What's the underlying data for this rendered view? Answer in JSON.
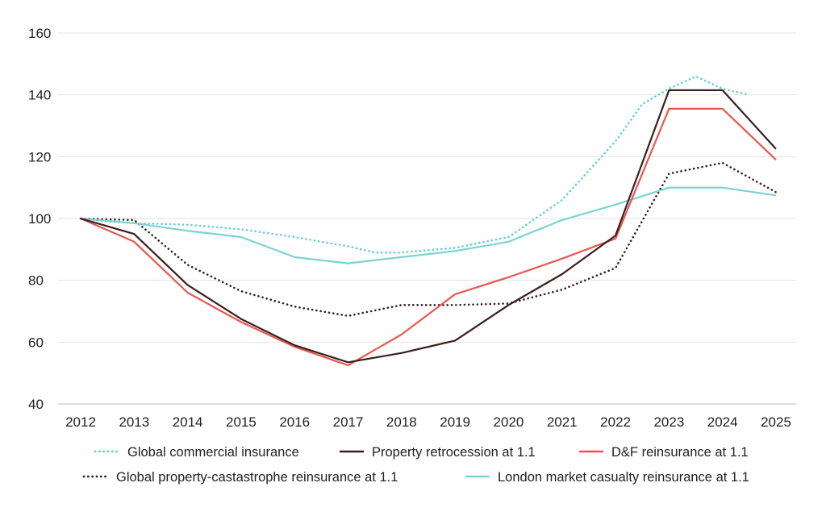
{
  "chart_data": {
    "type": "line",
    "title": "",
    "xlabel": "",
    "ylabel": "",
    "ylim": [
      40,
      160
    ],
    "yticks": [
      40,
      60,
      80,
      100,
      120,
      140,
      160
    ],
    "xlim": [
      2012,
      2025
    ],
    "xticks": [
      2012,
      2013,
      2014,
      2015,
      2016,
      2017,
      2018,
      2019,
      2020,
      2021,
      2022,
      2023,
      2024,
      2025
    ],
    "grid": "horizontal",
    "legend_position": "bottom",
    "series": [
      {
        "name": "Global commercial insurance",
        "color": "#5ecfd4",
        "style": "dotted",
        "points": [
          [
            2012,
            100
          ],
          [
            2012.5,
            99
          ],
          [
            2013,
            98.5
          ],
          [
            2014,
            98
          ],
          [
            2015,
            96.5
          ],
          [
            2016,
            94
          ],
          [
            2017,
            91
          ],
          [
            2017.5,
            89
          ],
          [
            2018,
            89
          ],
          [
            2019,
            90.5
          ],
          [
            2020,
            94
          ],
          [
            2021,
            106
          ],
          [
            2022,
            125
          ],
          [
            2022.5,
            137
          ],
          [
            2023,
            142
          ],
          [
            2023.5,
            146
          ],
          [
            2024,
            142
          ],
          [
            2024.5,
            140
          ]
        ]
      },
      {
        "name": "Property retrocession at 1.1",
        "color": "#3b1f1f",
        "style": "solid",
        "points": [
          [
            2012,
            100
          ],
          [
            2013,
            95
          ],
          [
            2014,
            78.5
          ],
          [
            2015,
            67.5
          ],
          [
            2016,
            59
          ],
          [
            2017,
            53.5
          ],
          [
            2018,
            56.5
          ],
          [
            2019,
            60.5
          ],
          [
            2020,
            72
          ],
          [
            2021,
            82
          ],
          [
            2022,
            94.5
          ],
          [
            2023,
            141.5
          ],
          [
            2024,
            141.5
          ],
          [
            2025,
            122.5
          ]
        ]
      },
      {
        "name": "D&F reinsurance at 1.1",
        "color": "#e8574f",
        "style": "solid",
        "points": [
          [
            2012,
            100
          ],
          [
            2013,
            92.5
          ],
          [
            2014,
            76
          ],
          [
            2015,
            66.5
          ],
          [
            2016,
            58.5
          ],
          [
            2017,
            52.5
          ],
          [
            2018,
            62.5
          ],
          [
            2019,
            75.5
          ],
          [
            2020,
            81
          ],
          [
            2021,
            87
          ],
          [
            2022,
            93.5
          ],
          [
            2023,
            135.5
          ],
          [
            2024,
            135.5
          ],
          [
            2025,
            119
          ]
        ]
      },
      {
        "name": "Global property-castastrophe reinsurance at 1.1",
        "color": "#3b1f1f",
        "style": "dotted",
        "points": [
          [
            2012,
            100
          ],
          [
            2013,
            99.5
          ],
          [
            2014,
            85
          ],
          [
            2015,
            76.5
          ],
          [
            2016,
            71.5
          ],
          [
            2017,
            68.5
          ],
          [
            2018,
            72
          ],
          [
            2019,
            72
          ],
          [
            2020,
            72.5
          ],
          [
            2021,
            77
          ],
          [
            2022,
            84
          ],
          [
            2023,
            114.5
          ],
          [
            2024,
            118
          ],
          [
            2025,
            108.5
          ]
        ]
      },
      {
        "name": "London market casualty reinsurance at 1.1",
        "color": "#7ad4d1",
        "style": "solid",
        "points": [
          [
            2012,
            100
          ],
          [
            2013,
            98.5
          ],
          [
            2014,
            96
          ],
          [
            2015,
            94
          ],
          [
            2016,
            87.5
          ],
          [
            2017,
            85.5
          ],
          [
            2018,
            87.5
          ],
          [
            2019,
            89.5
          ],
          [
            2020,
            92.5
          ],
          [
            2021,
            99.5
          ],
          [
            2022,
            104.5
          ],
          [
            2023,
            110
          ],
          [
            2024,
            110
          ],
          [
            2025,
            107.5
          ]
        ]
      }
    ]
  }
}
